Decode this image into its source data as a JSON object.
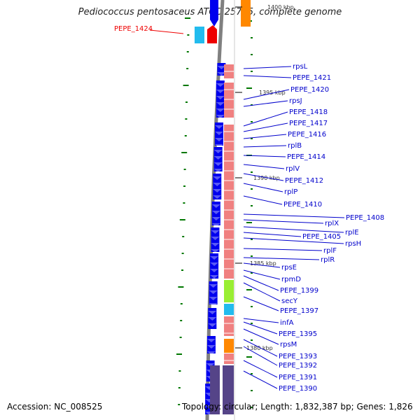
{
  "title": "Pediococcus pentosaceus ATCC 25745, complete genome",
  "footer": {
    "accession": "Accession: NC_008525",
    "info": "Topology: circular; Length: 1,832,387 bp; Genes: 1,826"
  },
  "highlight_label": "PEPE_1424",
  "kbp_ticks": [
    "1400 kbp",
    "1395 kbp",
    "1390 kbp",
    "1385 kbp",
    "1380 kbp"
  ],
  "gene_labels": [
    "rpsL",
    "PEPE_1421",
    "PEPE_1420",
    "rpsJ",
    "PEPE_1418",
    "PEPE_1417",
    "PEPE_1416",
    "rplB",
    "PEPE_1414",
    "rplV",
    "PEPE_1412",
    "rplP",
    "PEPE_1410",
    "PEPE_1408",
    "rplX",
    "rplE",
    "PEPE_1405",
    "rpsH",
    "rplF",
    "rplR",
    "rpsE",
    "rpmD",
    "PEPE_1399",
    "secY",
    "PEPE_1397",
    "infA",
    "PEPE_1395",
    "rpsM",
    "PEPE_1393",
    "PEPE_1392",
    "PEPE_1391",
    "PEPE_1390"
  ],
  "colors": {
    "backbone": "#808080",
    "cds_blue": "#0000ee",
    "rna_pink": "#f08080",
    "highlight_red": "#ee0000",
    "highlight_cyan": "#22bbee",
    "green_tick": "#007700",
    "orange_feature": "#ff8800",
    "lime_feature": "#99ee33",
    "slate_feature": "#554488",
    "label_blue": "#0000cc"
  }
}
